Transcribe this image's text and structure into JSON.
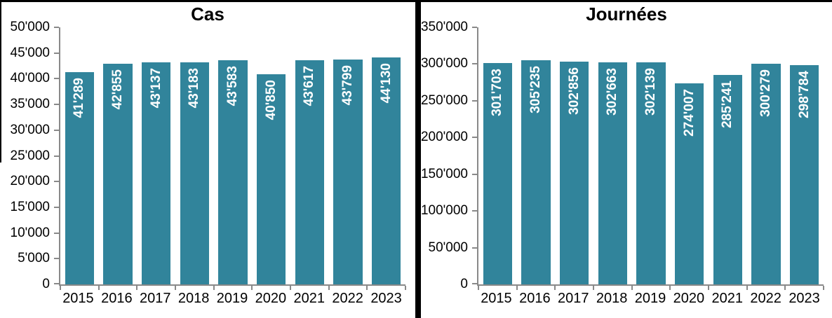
{
  "colors": {
    "bar_fill": "#31849b",
    "axis_line": "#898989",
    "value_label_text": "#ffffff",
    "title_text": "#000000",
    "divider": "#000000",
    "background": "#ffffff"
  },
  "chart_data": [
    {
      "type": "bar",
      "title": "Cas",
      "categories": [
        "2015",
        "2016",
        "2017",
        "2018",
        "2019",
        "2020",
        "2021",
        "2022",
        "2023"
      ],
      "values": [
        41289,
        42855,
        43137,
        43183,
        43583,
        40850,
        43617,
        43799,
        44130
      ],
      "value_labels": [
        "41'289",
        "42'855",
        "43'137",
        "43'183",
        "43'583",
        "40'850",
        "43'617",
        "43'799",
        "44'130"
      ],
      "xlabel": "",
      "ylabel": "",
      "ylim": [
        0,
        50000
      ],
      "y_tick_values": [
        0,
        5000,
        10000,
        15000,
        20000,
        25000,
        30000,
        35000,
        40000,
        45000,
        50000
      ],
      "y_tick_labels": [
        "0",
        "5'000",
        "10'000",
        "15'000",
        "20'000",
        "25'000",
        "30'000",
        "35'000",
        "40'000",
        "45'000",
        "50'000"
      ],
      "grid": false,
      "legend": false,
      "value_label_orientation": "vertical-bottom-up"
    },
    {
      "type": "bar",
      "title": "Journées",
      "categories": [
        "2015",
        "2016",
        "2017",
        "2018",
        "2019",
        "2020",
        "2021",
        "2022",
        "2023"
      ],
      "values": [
        301703,
        305235,
        302856,
        302663,
        302139,
        274007,
        285241,
        300279,
        298784
      ],
      "value_labels": [
        "301'703",
        "305'235",
        "302'856",
        "302'663",
        "302'139",
        "274'007",
        "285'241",
        "300'279",
        "298'784"
      ],
      "xlabel": "",
      "ylabel": "",
      "ylim": [
        0,
        350000
      ],
      "y_tick_values": [
        0,
        50000,
        100000,
        150000,
        200000,
        250000,
        300000,
        350000
      ],
      "y_tick_labels": [
        "0",
        "50'000",
        "100'000",
        "150'000",
        "200'000",
        "250'000",
        "300'000",
        "350'000"
      ],
      "grid": false,
      "legend": false,
      "value_label_orientation": "vertical-bottom-up"
    }
  ]
}
